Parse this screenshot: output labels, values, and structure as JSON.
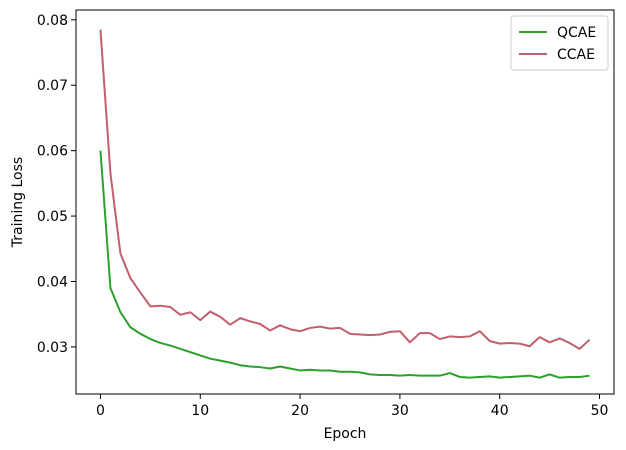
{
  "chart_data": {
    "type": "line",
    "title": "",
    "xlabel": "Epoch",
    "ylabel": "Training Loss",
    "xlim": [
      -2.45,
      51.45
    ],
    "ylim": [
      0.0228,
      0.0815
    ],
    "xticks": [
      0,
      10,
      20,
      30,
      40,
      50
    ],
    "yticks": [
      0.03,
      0.04,
      0.05,
      0.06,
      0.07,
      0.08
    ],
    "ytick_labels": [
      "0.03",
      "0.04",
      "0.05",
      "0.06",
      "0.07",
      "0.08"
    ],
    "grid": false,
    "legend_position": "top-right",
    "x": [
      0,
      1,
      2,
      3,
      4,
      5,
      6,
      7,
      8,
      9,
      10,
      11,
      12,
      13,
      14,
      15,
      16,
      17,
      18,
      19,
      20,
      21,
      22,
      23,
      24,
      25,
      26,
      27,
      28,
      29,
      30,
      31,
      32,
      33,
      34,
      35,
      36,
      37,
      38,
      39,
      40,
      41,
      42,
      43,
      44,
      45,
      46,
      47,
      48,
      49
    ],
    "series": [
      {
        "name": "QCAE",
        "color": "#2ca02c",
        "values": [
          0.06,
          0.039,
          0.0353,
          0.033,
          0.032,
          0.0312,
          0.0306,
          0.0302,
          0.0297,
          0.0292,
          0.0287,
          0.0282,
          0.0279,
          0.0276,
          0.0272,
          0.027,
          0.0269,
          0.0267,
          0.027,
          0.0267,
          0.0264,
          0.0265,
          0.0264,
          0.0264,
          0.0262,
          0.0262,
          0.0261,
          0.0258,
          0.0257,
          0.0257,
          0.0256,
          0.0257,
          0.0256,
          0.0256,
          0.0256,
          0.026,
          0.0254,
          0.0253,
          0.0254,
          0.0255,
          0.0253,
          0.0254,
          0.0255,
          0.0256,
          0.0253,
          0.0258,
          0.0253,
          0.0254,
          0.0254,
          0.0256
        ]
      },
      {
        "name": "CCAE",
        "color": "#c0606e",
        "values": [
          0.0785,
          0.0565,
          0.0443,
          0.0405,
          0.0383,
          0.0362,
          0.0363,
          0.0361,
          0.0349,
          0.0353,
          0.0341,
          0.0354,
          0.0346,
          0.0334,
          0.0344,
          0.0339,
          0.0335,
          0.0325,
          0.0333,
          0.0327,
          0.0324,
          0.0329,
          0.0331,
          0.0328,
          0.0329,
          0.032,
          0.0319,
          0.0318,
          0.0319,
          0.0323,
          0.0324,
          0.0307,
          0.0321,
          0.0321,
          0.0312,
          0.0316,
          0.0315,
          0.0316,
          0.0324,
          0.0309,
          0.0305,
          0.0306,
          0.0305,
          0.0301,
          0.0315,
          0.0307,
          0.0313,
          0.0306,
          0.0297,
          0.0311
        ]
      }
    ]
  }
}
